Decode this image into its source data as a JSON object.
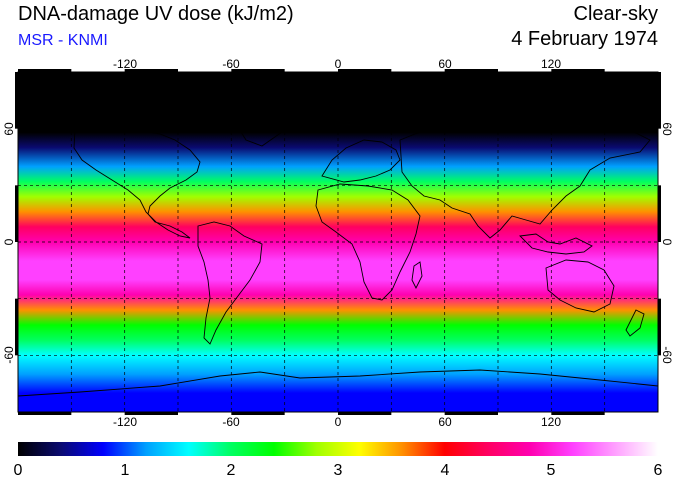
{
  "header": {
    "title": "DNA-damage UV dose (kJ/m2)",
    "source": "MSR - KNMI",
    "condition": "Clear-sky",
    "date": "4 February 1974"
  },
  "map": {
    "projection": "equirectangular",
    "lon_range": [
      -180,
      180
    ],
    "lat_range": [
      -90,
      90
    ],
    "lon_ticks": [
      -120,
      -60,
      0,
      60,
      120
    ],
    "lat_ticks": [
      60,
      0,
      -60
    ],
    "lon_tick_labels": [
      "-120",
      "-60",
      "0",
      "60",
      "120"
    ],
    "lat_tick_labels": [
      "60",
      "0",
      "-60"
    ],
    "grid": "dashed every 30 degrees",
    "field": "DNA-damage UV dose, clear-sky, daily"
  },
  "colorbar": {
    "min": 0,
    "max": 6,
    "labels": [
      "0",
      "1",
      "2",
      "3",
      "4",
      "5",
      "6"
    ],
    "colors": [
      "#000000",
      "#0a0a70",
      "#0000ff",
      "#00a0ff",
      "#00ffff",
      "#00ff60",
      "#00ff00",
      "#a0ff00",
      "#ffff00",
      "#ff9000",
      "#ff0000",
      "#ff0060",
      "#ff00b0",
      "#ff40ff",
      "#ffa0ff",
      "#ffffff"
    ]
  },
  "dose_profile_by_lat": [
    {
      "lat": 90,
      "dose": 0
    },
    {
      "lat": 70,
      "dose": 0
    },
    {
      "lat": 58,
      "dose": 0.05
    },
    {
      "lat": 50,
      "dose": 0.4
    },
    {
      "lat": 40,
      "dose": 1.2
    },
    {
      "lat": 32,
      "dose": 1.9
    },
    {
      "lat": 24,
      "dose": 2.8
    },
    {
      "lat": 16,
      "dose": 3.7
    },
    {
      "lat": 8,
      "dose": 4.4
    },
    {
      "lat": 0,
      "dose": 4.9
    },
    {
      "lat": -10,
      "dose": 5.3
    },
    {
      "lat": -20,
      "dose": 5.2
    },
    {
      "lat": -28,
      "dose": 4.6
    },
    {
      "lat": -36,
      "dose": 3.4
    },
    {
      "lat": -44,
      "dose": 2.5
    },
    {
      "lat": -52,
      "dose": 2.0
    },
    {
      "lat": -60,
      "dose": 1.5
    },
    {
      "lat": -70,
      "dose": 1.2
    },
    {
      "lat": -80,
      "dose": 0.9
    },
    {
      "lat": -90,
      "dose": 0.8
    }
  ]
}
